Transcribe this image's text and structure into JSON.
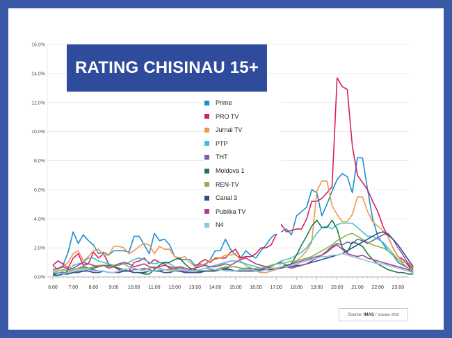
{
  "chart_data": {
    "type": "line",
    "title": "RATING CHISINAU 15+",
    "x": [
      "6:00",
      "6:15",
      "6:30",
      "6:45",
      "7:00",
      "7:15",
      "7:30",
      "7:45",
      "8:00",
      "8:15",
      "8:30",
      "8:45",
      "9:00",
      "9:15",
      "9:30",
      "9:45",
      "10:00",
      "10:15",
      "10:30",
      "10:45",
      "11:00",
      "11:15",
      "11:30",
      "11:45",
      "12:00",
      "12:15",
      "12:30",
      "12:45",
      "13:00",
      "13:15",
      "13:30",
      "13:45",
      "14:00",
      "14:15",
      "14:30",
      "14:45",
      "15:00",
      "15:15",
      "15:30",
      "15:45",
      "16:00",
      "16:15",
      "16:30",
      "16:45",
      "17:00",
      "17:15",
      "17:30",
      "17:45",
      "18:00",
      "18:15",
      "18:30",
      "18:45",
      "19:00",
      "19:15",
      "19:30",
      "19:45",
      "20:00",
      "20:15",
      "20:30",
      "20:45",
      "21:00",
      "21:15",
      "21:30",
      "21:45",
      "22:00",
      "22:15",
      "22:30",
      "22:45",
      "23:00",
      "23:15",
      "23:30",
      "23:45"
    ],
    "x_ticks": [
      "6:00",
      "7:00",
      "8:00",
      "9:00",
      "10:00",
      "11:00",
      "12:00",
      "13:00",
      "14:00",
      "15:00",
      "16:00",
      "17:00",
      "18:00",
      "19:00",
      "20:00",
      "21:00",
      "22:00",
      "23:00"
    ],
    "y_ticks": [
      "0,0%",
      "2,0%",
      "4,0%",
      "6,0%",
      "8,0%",
      "10,0%",
      "12,0%",
      "14,0%",
      "16,0%"
    ],
    "ylim": [
      0,
      16
    ],
    "grid": true,
    "legend_position": "center",
    "series": [
      {
        "name": "Prime",
        "color": "#1a8fd0",
        "values": [
          0.8,
          0.5,
          0.8,
          1.7,
          3.1,
          2.3,
          2.9,
          2.5,
          2.2,
          1.6,
          1.7,
          1.5,
          1.8,
          1.8,
          1.8,
          1.7,
          2.8,
          2.8,
          2.2,
          1.6,
          3.0,
          2.5,
          2.6,
          2.2,
          1.4,
          1.2,
          1.2,
          1.2,
          0.8,
          0.9,
          0.8,
          1.2,
          1.8,
          1.8,
          2.6,
          1.9,
          1.5,
          1.3,
          1.8,
          1.5,
          1.3,
          1.8,
          2.2,
          2.7,
          3.0,
          3.1,
          3.3,
          2.9,
          4.2,
          4.5,
          4.8,
          6.0,
          5.8,
          4.2,
          5.0,
          5.9,
          6.7,
          7.1,
          6.9,
          5.8,
          8.2,
          8.2,
          6.0,
          4.0,
          2.8,
          2.3,
          1.8,
          1.5,
          1.0,
          0.8,
          0.6,
          0.3
        ]
      },
      {
        "name": "PRO TV",
        "color": "#d81e5b",
        "values": [
          0.8,
          1.1,
          0.9,
          0.6,
          1.3,
          1.6,
          0.8,
          0.9,
          1.7,
          1.3,
          1.6,
          0.9,
          0.7,
          0.5,
          0.4,
          0.4,
          1.0,
          1.1,
          1.3,
          0.9,
          1.2,
          1.0,
          0.9,
          0.6,
          0.5,
          0.7,
          0.6,
          0.5,
          0.6,
          1.0,
          1.2,
          1.0,
          1.3,
          1.3,
          1.3,
          1.7,
          1.9,
          1.3,
          1.4,
          1.4,
          1.6,
          2.0,
          2.0,
          2.2,
          2.9,
          3.6,
          3.1,
          3.2,
          3.3,
          3.3,
          4.0,
          5.2,
          5.2,
          5.4,
          5.8,
          6.2,
          13.7,
          13.1,
          12.9,
          9.0,
          7.0,
          6.5,
          6.0,
          5.2,
          4.5,
          3.5,
          2.8,
          2.0,
          1.4,
          1.2,
          0.8,
          0.3
        ]
      },
      {
        "name": "Jurnal TV",
        "color": "#f3974a",
        "values": [
          0.4,
          0.5,
          0.7,
          1.0,
          1.6,
          1.8,
          1.1,
          1.4,
          1.8,
          1.9,
          1.5,
          1.5,
          2.1,
          2.1,
          2.0,
          1.6,
          1.8,
          2.1,
          2.3,
          2.2,
          1.6,
          2.1,
          1.9,
          1.9,
          1.4,
          1.3,
          1.4,
          1.0,
          0.7,
          0.8,
          0.9,
          1.2,
          1.2,
          1.3,
          1.5,
          1.5,
          1.6,
          1.1,
          0.8,
          0.6,
          0.4,
          0.3,
          0.3,
          0.4,
          0.5,
          0.7,
          0.7,
          0.9,
          1.1,
          1.4,
          1.8,
          2.4,
          5.9,
          6.6,
          6.6,
          4.9,
          4.3,
          3.8,
          3.8,
          4.3,
          5.5,
          5.5,
          4.5,
          3.8,
          3.5,
          3.2,
          2.8,
          2.0,
          1.4,
          1.0,
          1.0,
          0.6
        ]
      },
      {
        "name": "PTP",
        "color": "#3dc1d1",
        "values": [
          0.3,
          0.2,
          0.4,
          0.5,
          0.8,
          0.9,
          1.0,
          1.3,
          1.3,
          1.1,
          1.0,
          0.9,
          0.8,
          0.8,
          0.9,
          1.0,
          1.2,
          1.3,
          1.2,
          1.0,
          0.9,
          1.0,
          1.0,
          0.9,
          0.7,
          0.6,
          0.6,
          0.5,
          0.4,
          0.5,
          0.6,
          0.7,
          0.8,
          0.9,
          1.0,
          1.1,
          1.1,
          1.0,
          0.9,
          0.8,
          0.7,
          0.6,
          0.6,
          0.7,
          0.9,
          1.1,
          1.2,
          1.3,
          1.5,
          1.7,
          2.0,
          2.5,
          3.0,
          3.4,
          3.5,
          3.3,
          3.6,
          3.7,
          3.7,
          3.7,
          3.4,
          3.1,
          2.8,
          2.8,
          2.6,
          2.4,
          2.0,
          1.6,
          1.2,
          0.9,
          0.6,
          0.4
        ]
      },
      {
        "name": "THT",
        "color": "#7e5fac",
        "values": [
          0.2,
          0.3,
          0.3,
          0.2,
          0.3,
          0.4,
          0.4,
          0.5,
          0.5,
          0.4,
          0.4,
          0.3,
          0.3,
          0.4,
          0.4,
          0.4,
          0.5,
          0.5,
          0.6,
          0.5,
          0.4,
          0.4,
          0.5,
          0.5,
          0.5,
          0.4,
          0.4,
          0.3,
          0.3,
          0.4,
          0.4,
          0.4,
          0.5,
          0.6,
          0.6,
          0.5,
          0.4,
          0.5,
          0.6,
          0.6,
          0.5,
          0.5,
          0.6,
          0.8,
          0.9,
          1.0,
          0.8,
          0.9,
          1.0,
          1.1,
          1.2,
          1.3,
          1.4,
          1.5,
          1.8,
          2.1,
          2.3,
          2.2,
          2.4,
          2.3,
          2.6,
          2.5,
          2.3,
          2.5,
          2.7,
          2.9,
          3.0,
          2.6,
          2.0,
          1.5,
          0.9,
          0.5
        ]
      },
      {
        "name": "Moldova 1",
        "color": "#1d7a45",
        "values": [
          0.2,
          0.1,
          0.2,
          0.4,
          0.5,
          0.6,
          0.7,
          0.6,
          0.6,
          0.7,
          0.8,
          0.8,
          0.7,
          0.6,
          0.5,
          0.4,
          0.3,
          0.3,
          0.2,
          0.2,
          0.5,
          0.8,
          1.0,
          1.0,
          1.2,
          1.3,
          0.9,
          0.6,
          0.5,
          0.4,
          0.4,
          0.4,
          0.5,
          0.6,
          0.6,
          0.7,
          0.7,
          0.6,
          0.5,
          0.5,
          0.4,
          0.4,
          0.5,
          0.5,
          0.6,
          0.7,
          0.8,
          0.9,
          1.5,
          2.2,
          2.8,
          3.5,
          3.9,
          3.4,
          3.4,
          3.9,
          3.3,
          2.0,
          1.7,
          2.4,
          2.3,
          2.1,
          1.6,
          1.2,
          0.9,
          0.7,
          0.5,
          0.4,
          0.3,
          0.3,
          0.2,
          0.2
        ]
      },
      {
        "name": "REN-TV",
        "color": "#8ab54b",
        "values": [
          0.3,
          0.4,
          0.5,
          0.4,
          0.5,
          0.6,
          0.6,
          0.6,
          0.7,
          0.8,
          0.8,
          0.7,
          0.8,
          0.9,
          0.9,
          0.7,
          0.6,
          0.5,
          0.5,
          0.6,
          0.7,
          0.6,
          0.5,
          0.5,
          0.5,
          0.6,
          0.5,
          0.4,
          0.4,
          0.5,
          0.6,
          0.5,
          0.5,
          0.6,
          0.7,
          0.7,
          0.7,
          0.6,
          0.6,
          0.5,
          0.6,
          0.6,
          0.7,
          0.8,
          0.9,
          0.9,
          1.0,
          1.1,
          1.1,
          1.2,
          1.3,
          1.4,
          1.6,
          1.8,
          2.0,
          2.2,
          2.5,
          2.7,
          2.9,
          3.0,
          2.8,
          2.6,
          2.4,
          2.2,
          2.1,
          2.0,
          1.8,
          1.5,
          1.2,
          0.9,
          0.6,
          0.4
        ]
      },
      {
        "name": "Canal 3",
        "color": "#2c4f8c",
        "values": [
          0.1,
          0.1,
          0.2,
          0.2,
          0.3,
          0.3,
          0.4,
          0.4,
          0.3,
          0.3,
          0.4,
          0.3,
          0.3,
          0.3,
          0.4,
          0.4,
          0.3,
          0.3,
          0.3,
          0.4,
          0.4,
          0.4,
          0.3,
          0.3,
          0.4,
          0.4,
          0.3,
          0.3,
          0.3,
          0.3,
          0.4,
          0.4,
          0.4,
          0.5,
          0.5,
          0.5,
          0.4,
          0.4,
          0.4,
          0.4,
          0.4,
          0.5,
          0.5,
          0.5,
          0.6,
          0.6,
          0.7,
          0.7,
          0.8,
          0.8,
          0.9,
          1.0,
          1.1,
          1.2,
          1.3,
          1.4,
          1.5,
          1.6,
          1.8,
          2.0,
          2.2,
          2.4,
          2.6,
          2.8,
          3.0,
          3.1,
          2.9,
          2.6,
          2.2,
          1.7,
          1.2,
          0.7
        ]
      },
      {
        "name": "Publika TV",
        "color": "#b0408f",
        "values": [
          0.5,
          0.6,
          0.7,
          0.5,
          0.6,
          0.8,
          1.0,
          0.9,
          0.8,
          0.7,
          0.8,
          0.6,
          0.7,
          0.9,
          1.0,
          0.9,
          0.7,
          0.8,
          0.9,
          0.7,
          0.6,
          0.7,
          0.8,
          0.7,
          0.6,
          0.7,
          0.6,
          0.5,
          0.6,
          0.7,
          0.8,
          0.7,
          0.7,
          0.8,
          0.9,
          0.8,
          1.0,
          1.2,
          1.3,
          1.1,
          0.9,
          0.8,
          0.7,
          0.6,
          0.6,
          0.7,
          0.7,
          0.6,
          0.7,
          0.8,
          0.9,
          1.1,
          1.3,
          1.5,
          1.7,
          2.0,
          2.2,
          1.9,
          1.6,
          1.5,
          1.4,
          1.5,
          1.3,
          1.2,
          1.1,
          1.0,
          0.9,
          0.8,
          0.7,
          0.6,
          0.5,
          0.3
        ]
      },
      {
        "name": "N4",
        "color": "#8fc6df",
        "values": [
          0.4,
          0.3,
          0.2,
          0.3,
          0.4,
          0.5,
          0.5,
          0.5,
          0.4,
          0.4,
          0.4,
          0.3,
          0.3,
          0.4,
          0.5,
          0.6,
          0.6,
          0.5,
          0.4,
          0.4,
          0.4,
          0.5,
          0.5,
          0.4,
          0.4,
          0.5,
          0.5,
          0.4,
          0.4,
          0.5,
          0.6,
          0.6,
          0.5,
          0.5,
          0.4,
          0.4,
          0.4,
          0.5,
          0.5,
          0.5,
          0.4,
          0.4,
          0.5,
          0.6,
          0.6,
          0.7,
          0.7,
          0.8,
          0.9,
          1.0,
          1.1,
          1.2,
          1.3,
          1.4,
          1.4,
          1.5,
          1.5,
          1.6,
          1.5,
          1.4,
          1.3,
          1.2,
          1.1,
          1.0,
          0.9,
          0.9,
          0.8,
          0.7,
          0.6,
          0.5,
          0.4,
          0.3
        ]
      }
    ]
  },
  "source": {
    "prefix": "Source:",
    "name": "IMAS",
    "separator": "/",
    "date": "October 2016"
  }
}
